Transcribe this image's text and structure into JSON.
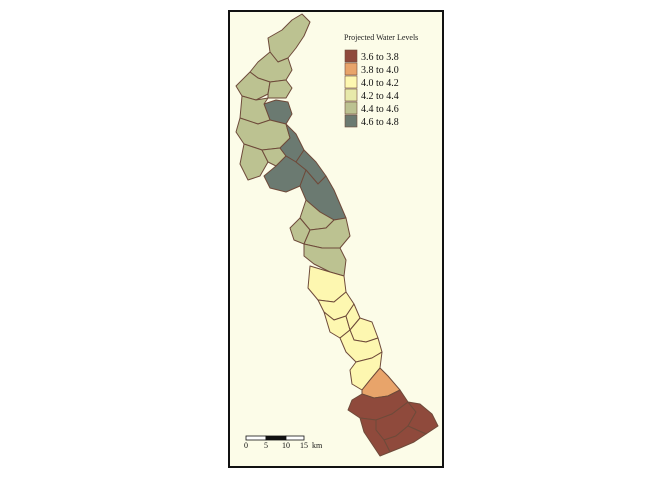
{
  "legend": {
    "title": "Projected Water Levels",
    "classes": [
      {
        "label": "3.6 to 3.8",
        "color": "#8f4a3c"
      },
      {
        "label": "3.8 to 4.0",
        "color": "#e8a46a"
      },
      {
        "label": "4.0 to 4.2",
        "color": "#fdf7b0"
      },
      {
        "label": "4.2 to 4.4",
        "color": "#e7e9aa"
      },
      {
        "label": "4.4 to 4.6",
        "color": "#bcc291"
      },
      {
        "label": "4.6 to 4.8",
        "color": "#6b7a71"
      }
    ]
  },
  "scale_bar": {
    "ticks": [
      "0",
      "5",
      "10",
      "15"
    ],
    "unit": "km"
  }
}
